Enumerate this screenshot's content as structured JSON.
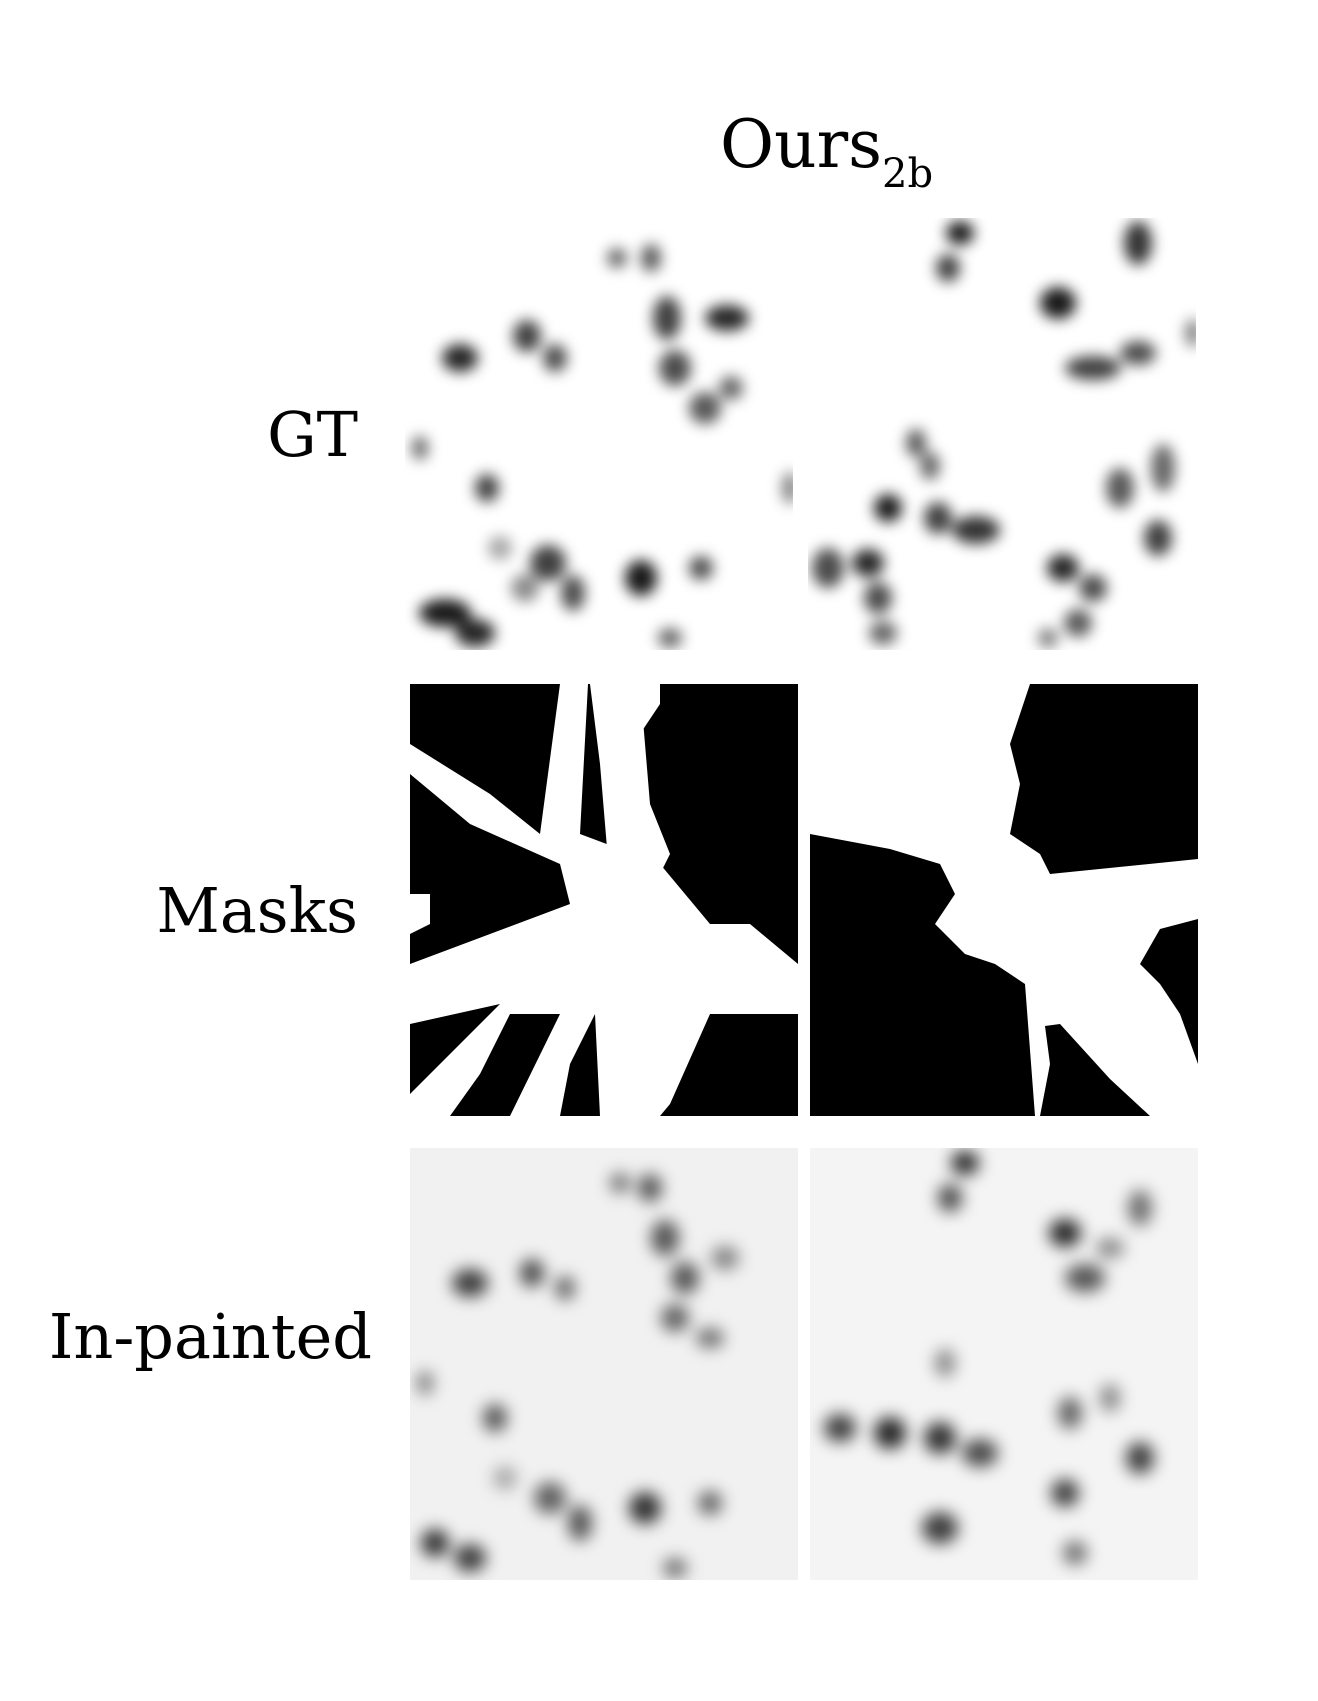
{
  "column_title": {
    "main": "Ours",
    "subscript": "2b"
  },
  "rows": [
    {
      "label": "GT"
    },
    {
      "label": "Masks"
    },
    {
      "label": "In-painted"
    }
  ],
  "panel_colors": {
    "ink": "#000000",
    "paper": "#ffffff",
    "inpaint_bg": "#f1f1f1"
  }
}
